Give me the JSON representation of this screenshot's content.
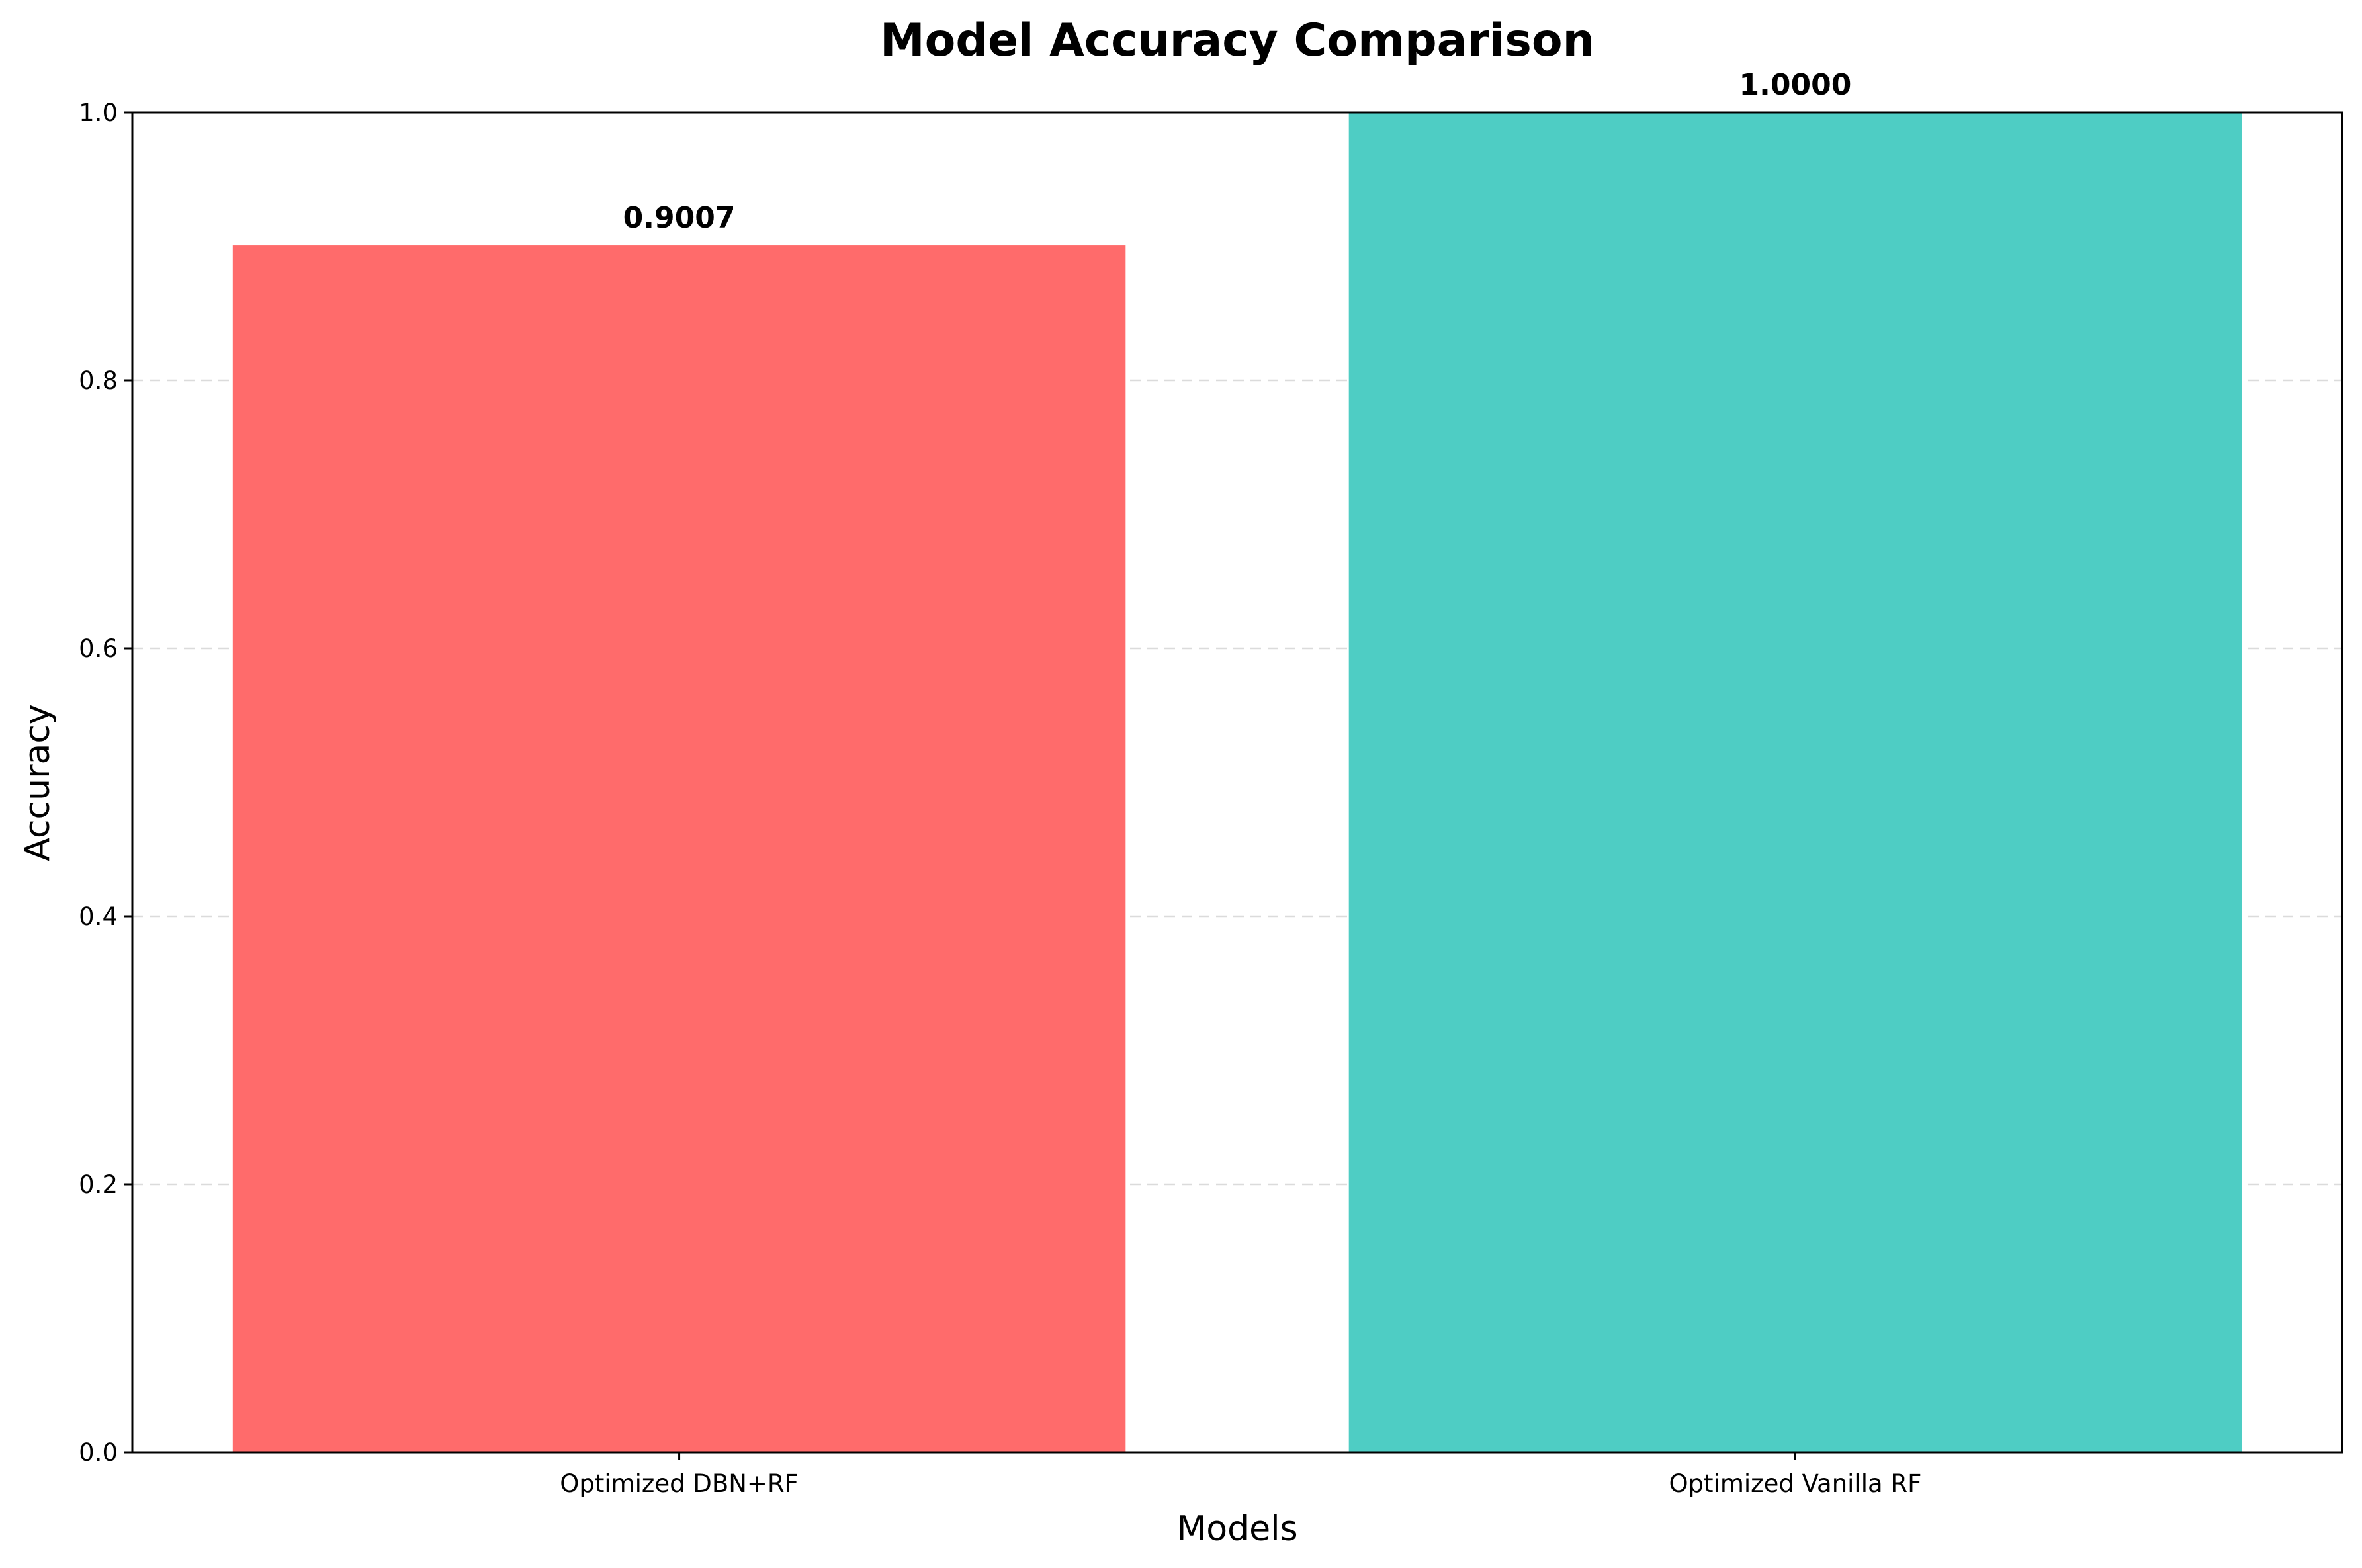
{
  "chart_data": {
    "type": "bar",
    "title": "Model Accuracy Comparison",
    "xlabel": "Models",
    "ylabel": "Accuracy",
    "categories": [
      "Optimized DBN+RF",
      "Optimized Vanilla RF"
    ],
    "values": [
      0.9007,
      1.0
    ],
    "data_labels": [
      "0.9007",
      "1.0000"
    ],
    "colors": [
      "#ff6b6b",
      "#4ecdc4"
    ],
    "ylim": [
      0,
      1
    ],
    "yticks": [
      0.0,
      0.2,
      0.4,
      0.6,
      0.8,
      1.0
    ],
    "ytick_labels": [
      "0.0",
      "0.2",
      "0.4",
      "0.6",
      "0.8",
      "1.0"
    ],
    "grid": "y-dashed",
    "legend": "none"
  }
}
